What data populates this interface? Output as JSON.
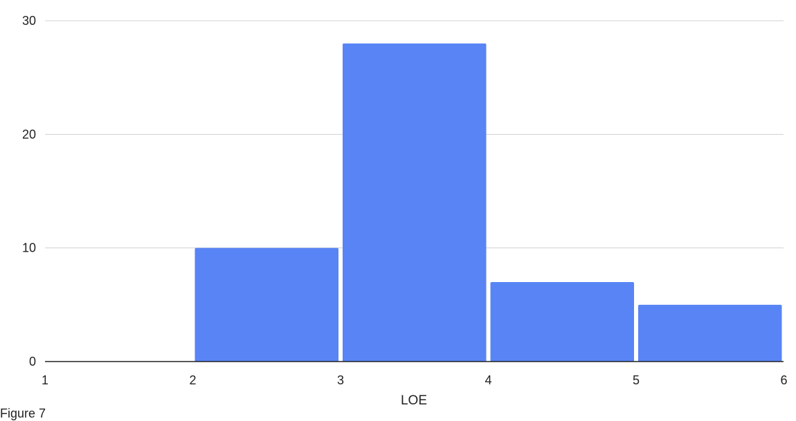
{
  "chart_data": {
    "type": "bar",
    "subtype": "histogram",
    "bins": [
      {
        "x0": 1,
        "x1": 2,
        "value": 0
      },
      {
        "x0": 2,
        "x1": 3,
        "value": 10
      },
      {
        "x0": 3,
        "x1": 4,
        "value": 28
      },
      {
        "x0": 4,
        "x1": 5,
        "value": 7
      },
      {
        "x0": 5,
        "x1": 6,
        "value": 5
      }
    ],
    "x_ticks": [
      "1",
      "2",
      "3",
      "4",
      "5",
      "6"
    ],
    "y_ticks": [
      "0",
      "10",
      "20",
      "30"
    ],
    "xlabel": "LOE",
    "ylabel": "",
    "xlim": [
      1,
      6
    ],
    "ylim": [
      0,
      30
    ],
    "grid": true,
    "legend": "none",
    "colors": {
      "bar": "#5884f5",
      "grid": "#d0d0d0",
      "axis": "#222222"
    }
  },
  "caption": "Figure 7"
}
